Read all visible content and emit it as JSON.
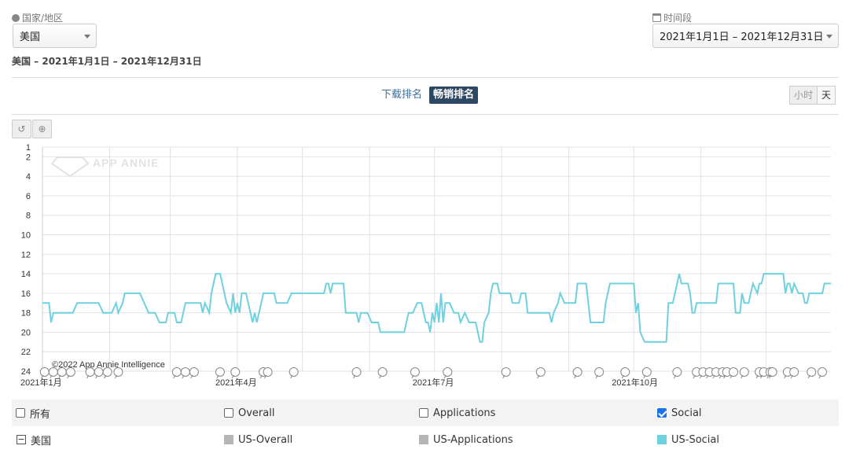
{
  "country": {
    "label": "国家/地区",
    "selected": "美国"
  },
  "period": {
    "label": "时间段",
    "selected": "2021年1月1日 – 2021年12月31日"
  },
  "subtitle": "美国 – 2021年1月1日 – 2021年12月31日",
  "tabs": {
    "download": "下载排名",
    "grossing": "畅销排名"
  },
  "granularity": {
    "hour": "小时",
    "day": "天"
  },
  "toolbar": {
    "reset_icon": "undo-icon",
    "zoom_icon": "zoom-in-icon"
  },
  "watermark": "APP ANNIE",
  "copyright": "©2022 App Annie Intelligence",
  "legend": {
    "all": "所有",
    "overall": "Overall",
    "applications": "Applications",
    "social": "Social",
    "country": "美国",
    "us_overall": "US-Overall",
    "us_applications": "US-Applications",
    "us_social": "US-Social"
  },
  "colors": {
    "social": "#6fd1de",
    "grey": "#b5b5b5",
    "accent": "#2d4863"
  },
  "chart_data": {
    "type": "line",
    "x_start": "2021-01-01",
    "x_end": "2021-12-31",
    "x_ticks": [
      "2021年1月",
      "2021年4月",
      "2021年7月",
      "2021年10月"
    ],
    "y_ticks": [
      1,
      2,
      4,
      6,
      8,
      10,
      12,
      14,
      16,
      18,
      20,
      22,
      24
    ],
    "ylim": [
      1,
      24
    ],
    "y_reversed": true,
    "series": [
      {
        "name": "US-Social",
        "color": "#6fd1de",
        "points": [
          [
            "2021-01-01",
            17
          ],
          [
            "2021-01-04",
            17
          ],
          [
            "2021-01-05",
            19
          ],
          [
            "2021-01-06",
            18
          ],
          [
            "2021-01-15",
            18
          ],
          [
            "2021-01-17",
            17
          ],
          [
            "2021-01-27",
            17
          ],
          [
            "2021-01-29",
            18
          ],
          [
            "2021-02-02",
            18
          ],
          [
            "2021-02-04",
            17
          ],
          [
            "2021-02-05",
            18
          ],
          [
            "2021-02-07",
            17
          ],
          [
            "2021-02-08",
            16
          ],
          [
            "2021-02-15",
            16
          ],
          [
            "2021-02-17",
            17
          ],
          [
            "2021-02-19",
            18
          ],
          [
            "2021-02-22",
            18
          ],
          [
            "2021-02-24",
            19
          ],
          [
            "2021-02-27",
            19
          ],
          [
            "2021-02-28",
            18
          ],
          [
            "2021-03-03",
            18
          ],
          [
            "2021-03-04",
            19
          ],
          [
            "2021-03-06",
            19
          ],
          [
            "2021-03-08",
            17
          ],
          [
            "2021-03-15",
            17
          ],
          [
            "2021-03-16",
            18
          ],
          [
            "2021-03-17",
            17
          ],
          [
            "2021-03-19",
            18
          ],
          [
            "2021-03-20",
            16
          ],
          [
            "2021-03-22",
            14
          ],
          [
            "2021-03-24",
            14
          ],
          [
            "2021-03-26",
            16
          ],
          [
            "2021-03-27",
            17
          ],
          [
            "2021-03-29",
            18
          ],
          [
            "2021-03-30",
            16
          ],
          [
            "2021-03-31",
            18
          ],
          [
            "2021-04-01",
            17
          ],
          [
            "2021-04-02",
            18
          ],
          [
            "2021-04-03",
            16
          ],
          [
            "2021-04-05",
            16
          ],
          [
            "2021-04-07",
            18
          ],
          [
            "2021-04-08",
            19
          ],
          [
            "2021-04-09",
            18
          ],
          [
            "2021-04-10",
            19
          ],
          [
            "2021-04-12",
            17
          ],
          [
            "2021-04-13",
            16
          ],
          [
            "2021-04-18",
            16
          ],
          [
            "2021-04-19",
            17
          ],
          [
            "2021-04-24",
            17
          ],
          [
            "2021-04-26",
            16
          ],
          [
            "2021-05-11",
            16
          ],
          [
            "2021-05-12",
            15
          ],
          [
            "2021-05-13",
            15
          ],
          [
            "2021-05-14",
            16
          ],
          [
            "2021-05-15",
            15
          ],
          [
            "2021-05-20",
            15
          ],
          [
            "2021-05-21",
            18
          ],
          [
            "2021-05-26",
            18
          ],
          [
            "2021-05-27",
            19
          ],
          [
            "2021-05-28",
            18
          ],
          [
            "2021-05-31",
            18
          ],
          [
            "2021-06-02",
            19
          ],
          [
            "2021-06-05",
            19
          ],
          [
            "2021-06-06",
            20
          ],
          [
            "2021-06-17",
            20
          ],
          [
            "2021-06-19",
            18
          ],
          [
            "2021-06-21",
            18
          ],
          [
            "2021-06-23",
            17
          ],
          [
            "2021-06-25",
            17
          ],
          [
            "2021-06-27",
            19
          ],
          [
            "2021-06-28",
            19
          ],
          [
            "2021-06-29",
            20
          ],
          [
            "2021-06-30",
            18
          ],
          [
            "2021-07-01",
            19
          ],
          [
            "2021-07-02",
            17
          ],
          [
            "2021-07-03",
            19
          ],
          [
            "2021-07-04",
            16
          ],
          [
            "2021-07-05",
            19
          ],
          [
            "2021-07-06",
            17
          ],
          [
            "2021-07-08",
            17
          ],
          [
            "2021-07-10",
            18
          ],
          [
            "2021-07-12",
            18
          ],
          [
            "2021-07-13",
            19
          ],
          [
            "2021-07-15",
            18
          ],
          [
            "2021-07-17",
            19
          ],
          [
            "2021-07-20",
            19
          ],
          [
            "2021-07-22",
            21
          ],
          [
            "2021-07-23",
            21
          ],
          [
            "2021-07-24",
            19
          ],
          [
            "2021-07-26",
            18
          ],
          [
            "2021-07-27",
            16
          ],
          [
            "2021-07-28",
            15
          ],
          [
            "2021-07-30",
            15
          ],
          [
            "2021-07-31",
            16
          ],
          [
            "2021-08-05",
            16
          ],
          [
            "2021-08-06",
            17
          ],
          [
            "2021-08-09",
            17
          ],
          [
            "2021-08-10",
            16
          ],
          [
            "2021-08-12",
            16
          ],
          [
            "2021-08-13",
            18
          ],
          [
            "2021-08-23",
            18
          ],
          [
            "2021-08-24",
            19
          ],
          [
            "2021-08-25",
            18
          ],
          [
            "2021-08-27",
            17
          ],
          [
            "2021-08-28",
            16
          ],
          [
            "2021-08-30",
            17
          ],
          [
            "2021-09-04",
            17
          ],
          [
            "2021-09-05",
            15
          ],
          [
            "2021-09-09",
            15
          ],
          [
            "2021-09-10",
            17
          ],
          [
            "2021-09-11",
            19
          ],
          [
            "2021-09-17",
            19
          ],
          [
            "2021-09-18",
            17
          ],
          [
            "2021-09-20",
            15
          ],
          [
            "2021-10-01",
            15
          ],
          [
            "2021-10-02",
            18
          ],
          [
            "2021-10-03",
            17
          ],
          [
            "2021-10-04",
            20
          ],
          [
            "2021-10-06",
            21
          ],
          [
            "2021-10-16",
            21
          ],
          [
            "2021-10-17",
            17
          ],
          [
            "2021-10-19",
            17
          ],
          [
            "2021-10-20",
            16
          ],
          [
            "2021-10-22",
            14
          ],
          [
            "2021-10-23",
            15
          ],
          [
            "2021-10-26",
            15
          ],
          [
            "2021-10-27",
            16
          ],
          [
            "2021-10-28",
            18
          ],
          [
            "2021-10-29",
            18
          ],
          [
            "2021-10-30",
            17
          ],
          [
            "2021-11-08",
            17
          ],
          [
            "2021-11-09",
            15
          ],
          [
            "2021-11-16",
            15
          ],
          [
            "2021-11-17",
            18
          ],
          [
            "2021-11-19",
            18
          ],
          [
            "2021-11-20",
            16
          ],
          [
            "2021-11-21",
            17
          ],
          [
            "2021-11-23",
            17
          ],
          [
            "2021-11-24",
            16
          ],
          [
            "2021-11-25",
            15
          ],
          [
            "2021-11-27",
            16
          ],
          [
            "2021-11-28",
            15
          ],
          [
            "2021-11-29",
            15
          ],
          [
            "2021-11-30",
            14
          ],
          [
            "2021-12-09",
            14
          ],
          [
            "2021-12-10",
            16
          ],
          [
            "2021-12-11",
            15
          ],
          [
            "2021-12-12",
            15
          ],
          [
            "2021-12-13",
            16
          ],
          [
            "2021-12-14",
            15
          ],
          [
            "2021-12-16",
            16
          ],
          [
            "2021-12-18",
            16
          ],
          [
            "2021-12-19",
            17
          ],
          [
            "2021-12-20",
            17
          ],
          [
            "2021-12-21",
            16
          ],
          [
            "2021-12-27",
            16
          ],
          [
            "2021-12-28",
            15
          ],
          [
            "2021-12-31",
            15
          ]
        ]
      }
    ],
    "annotation_dates": [
      "2021-01-02",
      "2021-01-06",
      "2021-01-10",
      "2021-01-14",
      "2021-01-23",
      "2021-01-27",
      "2021-01-31",
      "2021-02-05",
      "2021-03-04",
      "2021-03-08",
      "2021-03-12",
      "2021-03-24",
      "2021-03-31",
      "2021-04-13",
      "2021-04-15",
      "2021-04-27",
      "2021-05-26",
      "2021-06-07",
      "2021-06-22",
      "2021-07-07",
      "2021-08-03",
      "2021-08-19",
      "2021-09-05",
      "2021-09-15",
      "2021-09-27",
      "2021-10-07",
      "2021-10-21",
      "2021-10-30",
      "2021-11-02",
      "2021-11-05",
      "2021-11-08",
      "2021-11-11",
      "2021-11-13",
      "2021-11-16",
      "2021-11-21",
      "2021-11-28",
      "2021-11-30",
      "2021-12-03",
      "2021-12-04",
      "2021-12-11",
      "2021-12-14",
      "2021-12-22",
      "2021-12-27"
    ]
  }
}
